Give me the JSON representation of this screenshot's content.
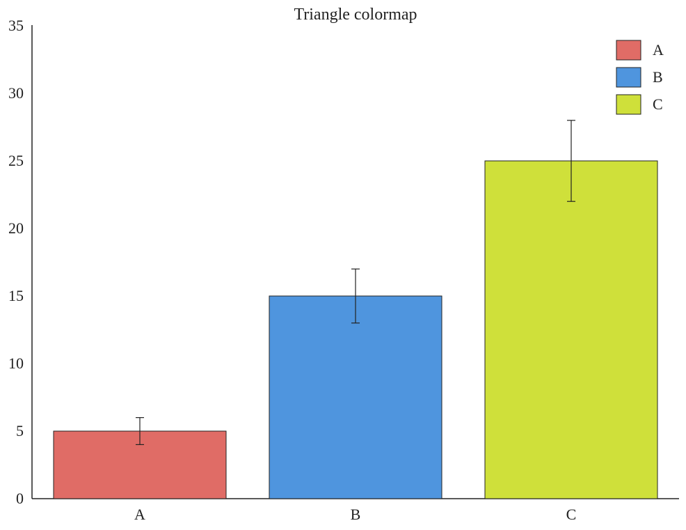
{
  "chart_data": {
    "type": "bar",
    "title": "Triangle colormap",
    "xlabel": "",
    "ylabel": "",
    "categories": [
      "A",
      "B",
      "C"
    ],
    "values": [
      5,
      15,
      25
    ],
    "errors": [
      1,
      2,
      3
    ],
    "colors": [
      "#e06c66",
      "#4f95de",
      "#cfe03a"
    ],
    "ylim": [
      0,
      35
    ],
    "yticks": [
      0,
      5,
      10,
      15,
      20,
      25,
      30,
      35
    ],
    "grid": false,
    "legend": {
      "placement": "top-right",
      "entries": [
        "A",
        "B",
        "C"
      ]
    }
  }
}
